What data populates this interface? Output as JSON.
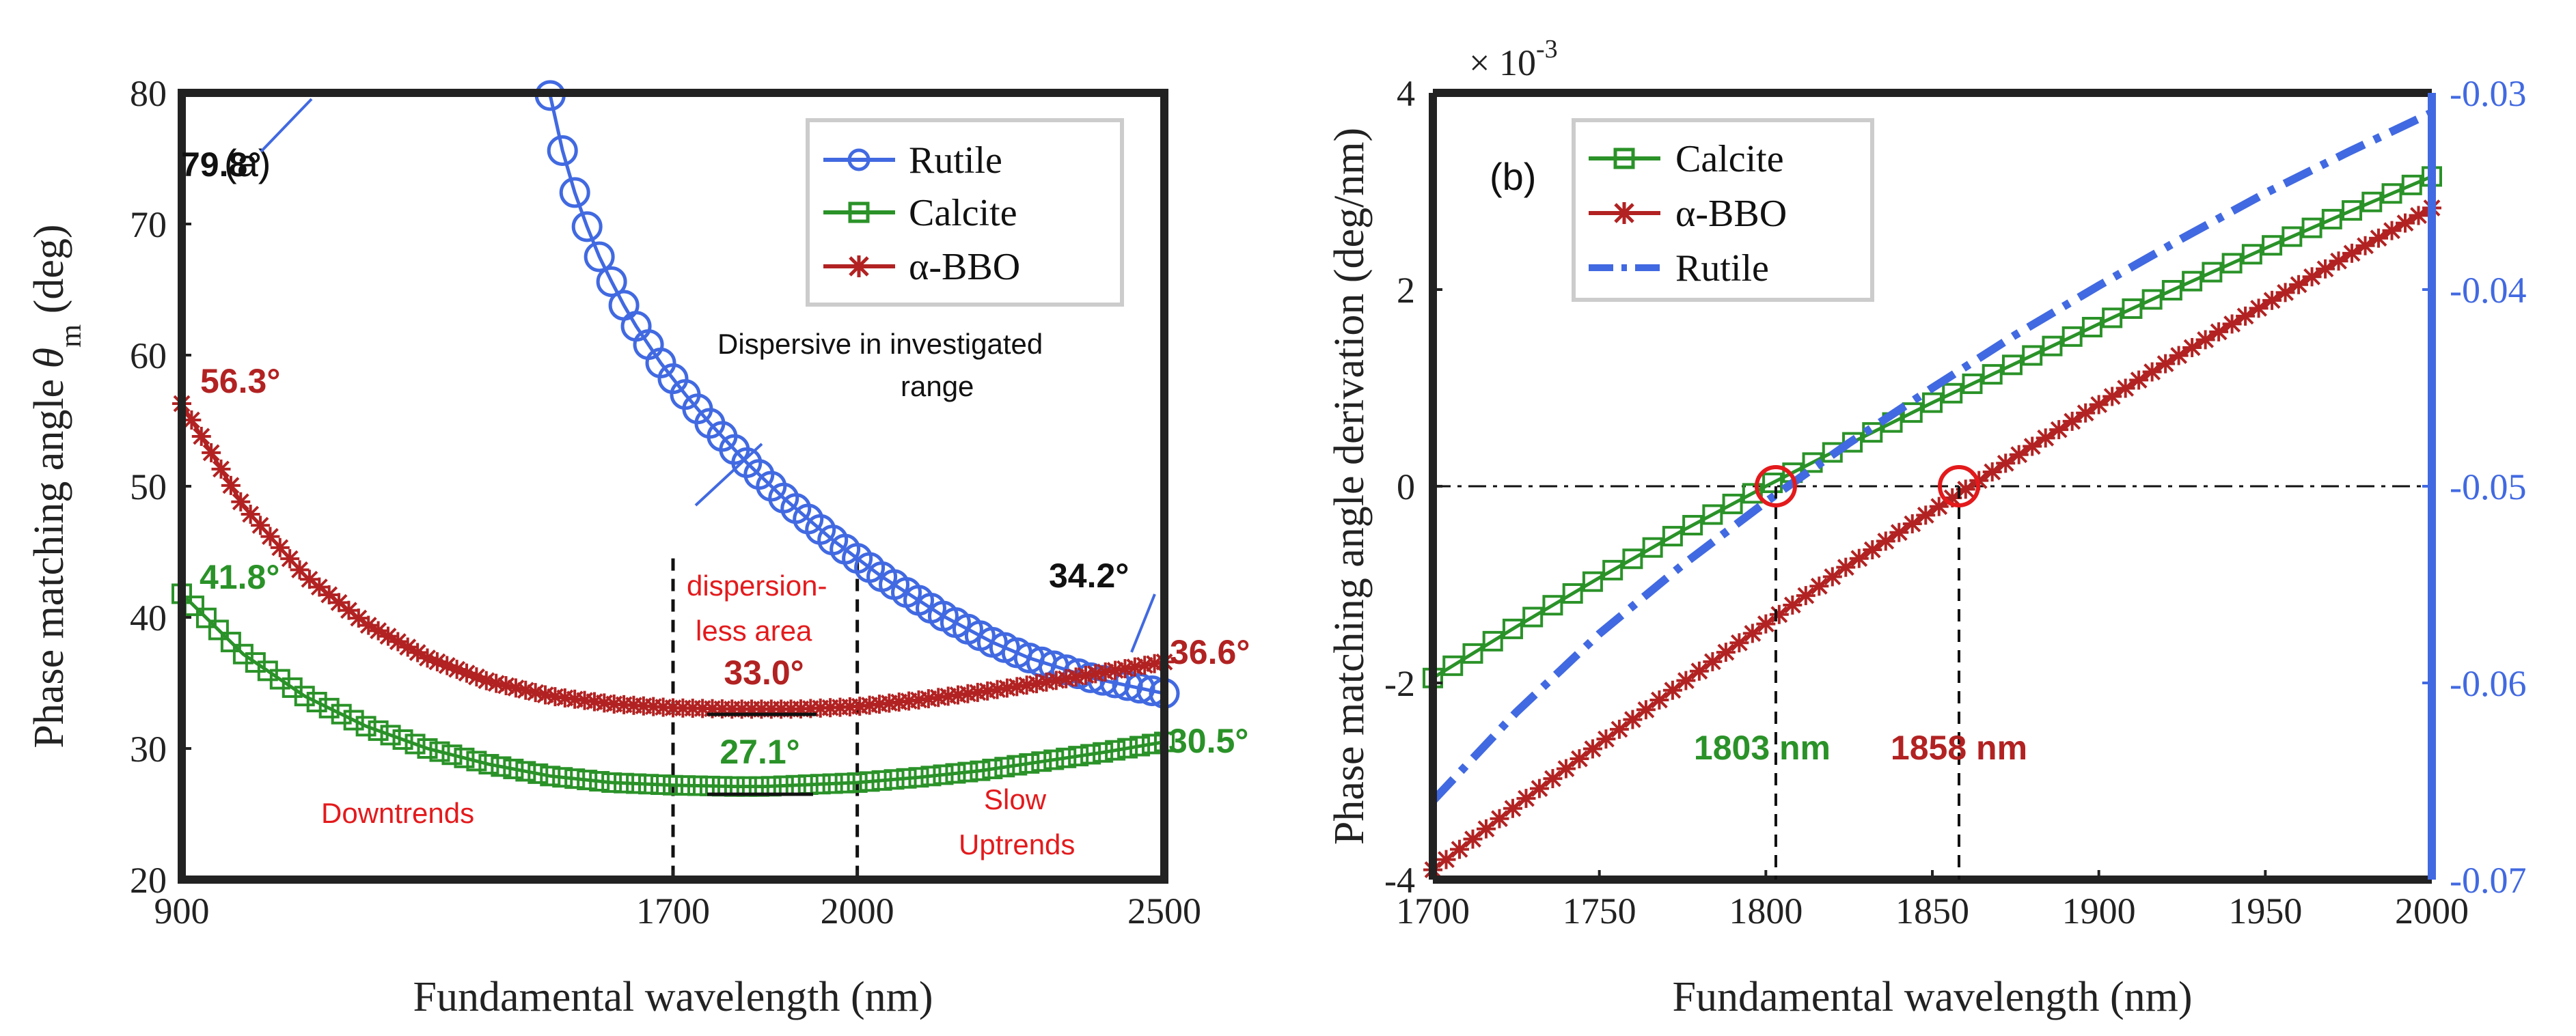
{
  "colors": {
    "rutile": "#4169e1",
    "calcite": "#2a9228",
    "bbo": "#b22222",
    "annotation_red": "#e31a1c",
    "annotation_green": "#2a9228",
    "axis": "#222222"
  },
  "chart_data": [
    {
      "id": "a",
      "type": "line",
      "panel_label": "(a)",
      "xlabel": "Fundamental wavelength (nm)",
      "ylabel": "Phase matching angle θ_m (deg)",
      "ylabel_main": "Phase matching angle ",
      "ylabel_symbol": "θ",
      "ylabel_sub": "m",
      "ylabel_unit": " (deg)",
      "xlim": [
        900,
        2500
      ],
      "ylim": [
        20,
        80
      ],
      "xticks": [
        900,
        1700,
        2000,
        2500
      ],
      "yticks": [
        20,
        30,
        40,
        50,
        60,
        70,
        80
      ],
      "legend": [
        "Rutile",
        "Calcite",
        "α-BBO"
      ],
      "series": [
        {
          "name": "Rutile",
          "color_key": "rutile",
          "marker": "circle",
          "x": [
            1500,
            1520,
            1540,
            1560,
            1580,
            1600,
            1620,
            1640,
            1660,
            1680,
            1700,
            1720,
            1740,
            1760,
            1780,
            1800,
            1820,
            1840,
            1860,
            1880,
            1900,
            1920,
            1940,
            1960,
            1980,
            2000,
            2020,
            2040,
            2060,
            2080,
            2100,
            2120,
            2140,
            2160,
            2180,
            2200,
            2220,
            2240,
            2260,
            2280,
            2300,
            2320,
            2340,
            2360,
            2380,
            2400,
            2420,
            2440,
            2460,
            2480,
            2500
          ],
          "y": [
            79.8,
            75.6,
            72.4,
            69.8,
            67.5,
            65.6,
            63.8,
            62.2,
            60.8,
            59.4,
            58.2,
            57.0,
            55.9,
            54.8,
            53.8,
            52.8,
            51.8,
            50.9,
            50.0,
            49.1,
            48.3,
            47.5,
            46.7,
            45.9,
            45.2,
            44.5,
            43.8,
            43.1,
            42.5,
            41.9,
            41.3,
            40.7,
            40.1,
            39.6,
            39.1,
            38.6,
            38.1,
            37.7,
            37.3,
            36.9,
            36.6,
            36.3,
            36.0,
            35.7,
            35.4,
            35.2,
            35.0,
            34.8,
            34.6,
            34.4,
            34.2
          ]
        },
        {
          "name": "Calcite",
          "color_key": "calcite",
          "marker": "square",
          "x": [
            900,
            1000,
            1100,
            1200,
            1300,
            1400,
            1500,
            1600,
            1700,
            1800,
            1850,
            1900,
            2000,
            2100,
            2200,
            2300,
            2400,
            2500
          ],
          "y": [
            41.8,
            37.2,
            34.0,
            31.7,
            30.0,
            28.8,
            27.9,
            27.4,
            27.2,
            27.1,
            27.1,
            27.2,
            27.4,
            27.8,
            28.3,
            29.0,
            29.7,
            30.5
          ]
        },
        {
          "name": "α-BBO",
          "color_key": "bbo",
          "marker": "asterisk",
          "x": [
            900,
            1000,
            1100,
            1200,
            1300,
            1400,
            1500,
            1600,
            1700,
            1800,
            1850,
            1900,
            2000,
            2100,
            2200,
            2300,
            2400,
            2500
          ],
          "y": [
            56.3,
            48.5,
            43.2,
            39.5,
            36.9,
            35.1,
            34.0,
            33.4,
            33.1,
            33.0,
            33.0,
            33.0,
            33.2,
            33.7,
            34.3,
            35.0,
            35.8,
            36.6
          ]
        }
      ],
      "annotations": [
        {
          "text": "79.8°",
          "x": 1500,
          "y": 79.8,
          "color_key": "axis"
        },
        {
          "text": "56.3°",
          "x": 900,
          "y": 56.3,
          "color_key": "bbo"
        },
        {
          "text": "41.8°",
          "x": 900,
          "y": 41.8,
          "color_key": "calcite"
        },
        {
          "text": "34.2°",
          "x": 2500,
          "y": 34.2,
          "color_key": "axis"
        },
        {
          "text": "36.6°",
          "x": 2500,
          "y": 36.6,
          "color_key": "bbo"
        },
        {
          "text": "30.5°",
          "x": 2500,
          "y": 30.5,
          "color_key": "calcite"
        },
        {
          "text": "33.0°",
          "x": 1850,
          "y": 33.0,
          "color_key": "bbo"
        },
        {
          "text": "27.1°",
          "x": 1850,
          "y": 27.1,
          "color_key": "calcite"
        }
      ],
      "notes": {
        "dispersive_line1": "Dispersive in investigated",
        "dispersive_line2": "range",
        "dispersionless_line1": "dispersion-",
        "dispersionless_line2": "less area",
        "downtrends": "Downtrends",
        "slow_line1": "Slow",
        "slow_line2": "Uptrends"
      }
    },
    {
      "id": "b",
      "type": "line",
      "panel_label": "(b)",
      "xlabel": "Fundamental wavelength (nm)",
      "ylabel": "Phase matching angle derivation (deg/nm)",
      "xlim": [
        1700,
        2000
      ],
      "ylim_left": [
        -0.004,
        0.004
      ],
      "ylim_right": [
        -0.07,
        -0.03
      ],
      "xticks": [
        1700,
        1750,
        1800,
        1850,
        1900,
        1950,
        2000
      ],
      "yticks_left_values": [
        -4,
        -2,
        0,
        2,
        4
      ],
      "yticks_left_labels": [
        "-4",
        "-2",
        "0",
        "2",
        "4"
      ],
      "y_multiplier_base": "× 10",
      "y_multiplier_exp": "-3",
      "yticks_right_values": [
        -0.07,
        -0.06,
        -0.05,
        -0.04,
        -0.03
      ],
      "yticks_right_labels": [
        "-0.07",
        "-0.06",
        "-0.05",
        "-0.04",
        "-0.03"
      ],
      "legend": [
        "Calcite",
        "α-BBO",
        "Rutile"
      ],
      "series": [
        {
          "name": "Calcite",
          "axis": "left",
          "color_key": "calcite",
          "marker": "square",
          "x": [
            1700,
            1725,
            1750,
            1775,
            1800,
            1825,
            1850,
            1875,
            1900,
            1925,
            1950,
            1975,
            2000
          ],
          "y": [
            -0.00195,
            -0.00143,
            -0.00093,
            -0.00045,
            0.0,
            0.00043,
            0.00085,
            0.00125,
            0.00165,
            0.00204,
            0.00242,
            0.00279,
            0.00315
          ]
        },
        {
          "name": "α-BBO",
          "axis": "left",
          "color_key": "bbo",
          "marker": "asterisk",
          "x": [
            1700,
            1725,
            1750,
            1775,
            1800,
            1825,
            1850,
            1875,
            1900,
            1925,
            1950,
            1975,
            2000
          ],
          "y": [
            -0.0039,
            -0.00325,
            -0.00262,
            -0.002,
            -0.0014,
            -0.0008,
            -0.00025,
            0.0003,
            0.00083,
            0.00135,
            0.00185,
            0.00235,
            0.00283
          ]
        },
        {
          "name": "Rutile",
          "axis": "right",
          "color_key": "rutile",
          "marker": "none",
          "linestyle": "dashdot",
          "x": [
            1700,
            1725,
            1750,
            1775,
            1800,
            1825,
            1850,
            1875,
            1900,
            1925,
            1950,
            1975,
            2000
          ],
          "y": [
            -0.066,
            -0.0615,
            -0.0575,
            -0.054,
            -0.0508,
            -0.0478,
            -0.045,
            -0.0423,
            -0.0398,
            -0.0374,
            -0.0351,
            -0.033,
            -0.031
          ]
        }
      ],
      "zero_crossings": [
        {
          "x": 1803,
          "label": "1803 nm",
          "color_key": "annotation_green"
        },
        {
          "x": 1858,
          "label": "1858 nm",
          "color_key": "bbo"
        }
      ]
    }
  ]
}
